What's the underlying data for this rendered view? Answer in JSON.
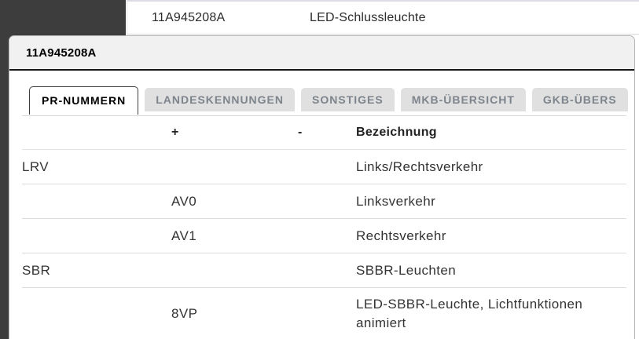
{
  "page": {
    "background_row": {
      "part_number": "11A945208A",
      "part_name": "LED-Schlussleuchte"
    }
  },
  "modal": {
    "title": "11A945208A",
    "tabs": [
      {
        "label": "PR-NUMMERN",
        "active": true
      },
      {
        "label": "LANDESKENNUNGEN",
        "active": false
      },
      {
        "label": "SONSTIGES",
        "active": false
      },
      {
        "label": "MKB-ÜBERSICHT",
        "active": false
      },
      {
        "label": "GKB-ÜBERS",
        "active": false
      }
    ],
    "table": {
      "headers": {
        "family": "",
        "plus": "+",
        "minus": "-",
        "name": "Bezeichnung"
      },
      "rows": [
        {
          "family": "LRV",
          "plus": "",
          "minus": "",
          "name": "Links/Rechtsverkehr"
        },
        {
          "family": "",
          "plus": "AV0",
          "minus": "",
          "name": "Linksverkehr"
        },
        {
          "family": "",
          "plus": "AV1",
          "minus": "",
          "name": "Rechtsverkehr"
        },
        {
          "family": "SBR",
          "plus": "",
          "minus": "",
          "name": "SBBR-Leuchten"
        },
        {
          "family": "",
          "plus": "8VP",
          "minus": "",
          "name": "LED-SBBR-Leuchte, Lichtfunktionen animiert"
        }
      ]
    }
  },
  "colors": {
    "sidebar": "#3d3d3d",
    "modal_header_bg": "#f1f1f1",
    "header_divider": "#161616",
    "tab_inactive_bg": "#e0e0e0",
    "tab_inactive_text": "#7d848c",
    "active_tab_border": "#3d3d3d",
    "row_separator": "#dcdcdc"
  }
}
